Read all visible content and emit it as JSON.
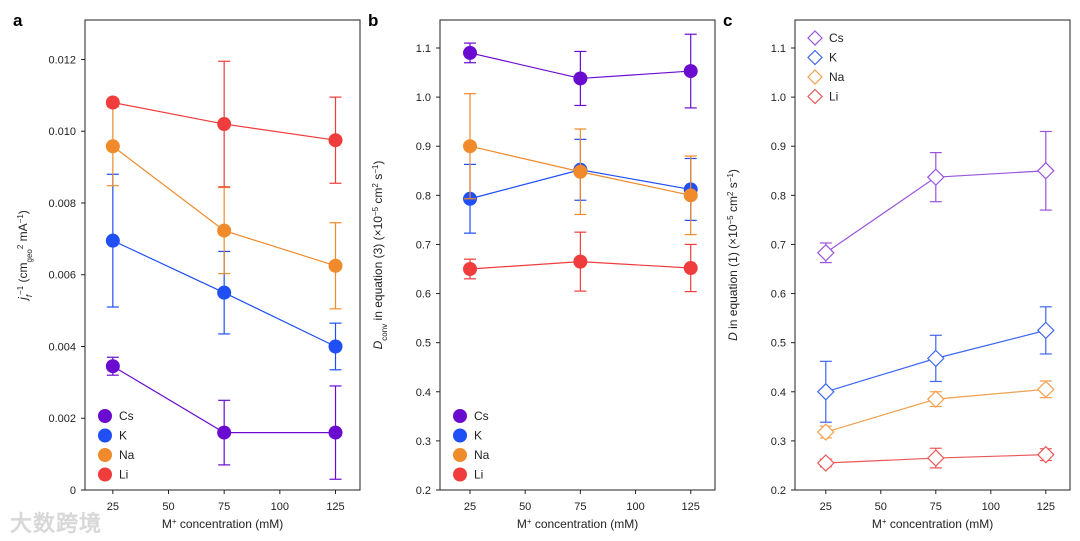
{
  "watermark": "大数跨境",
  "series_colors": {
    "Cs": "#6a0bd0",
    "K": "#1f4ff5",
    "Na": "#f08a2a",
    "Li": "#f03c3c"
  },
  "chart_data": [
    {
      "panel": "a",
      "type": "line",
      "markers": "filled-circle",
      "x": [
        25,
        75,
        125
      ],
      "xticks": [
        25,
        50,
        75,
        100,
        125
      ],
      "xlim": [
        12.5,
        136
      ],
      "yticks": [
        0,
        0.002,
        0.004,
        0.006,
        0.008,
        0.01,
        0.012
      ],
      "ytick_labels": [
        "0",
        "0.002",
        "0.004",
        "0.006",
        "0.008",
        "0.010",
        "0.012"
      ],
      "ylim": [
        0,
        0.0131
      ],
      "xlabel": [
        {
          "t": "M"
        },
        {
          "t": "+",
          "s": "sup"
        },
        {
          "t": " concentration (mM)"
        }
      ],
      "ylabel": [
        {
          "t": "j",
          "i": 1
        },
        {
          "t": "f",
          "s": "sub",
          "i": 1
        },
        {
          "t": "−1",
          "s": "sup"
        },
        {
          "t": " (cm"
        },
        {
          "t": "geo",
          "s": "sub"
        },
        {
          "t": "2",
          "s": "sup"
        },
        {
          "t": " mA"
        },
        {
          "t": "−1",
          "s": "sup"
        },
        {
          "t": ")"
        }
      ],
      "legend": "bottom-left",
      "series": [
        {
          "name": "Cs",
          "values": [
            0.00345,
            0.0016,
            0.0016
          ],
          "errors": [
            0.00025,
            0.0009,
            0.0013
          ]
        },
        {
          "name": "K",
          "values": [
            0.00695,
            0.0055,
            0.004
          ],
          "errors": [
            0.00185,
            0.00115,
            0.00065
          ]
        },
        {
          "name": "Na",
          "values": [
            0.00958,
            0.00723,
            0.00625
          ],
          "errors": [
            0.0011,
            0.0012,
            0.0012
          ]
        },
        {
          "name": "Li",
          "values": [
            0.0108,
            0.0102,
            0.00975
          ],
          "errors": [
            0.0001,
            0.00175,
            0.0012
          ]
        }
      ]
    },
    {
      "panel": "b",
      "type": "line",
      "markers": "filled-circle",
      "x": [
        25,
        75,
        125
      ],
      "xticks": [
        25,
        50,
        75,
        100,
        125
      ],
      "xlim": [
        11.4,
        136
      ],
      "yticks": [
        0.2,
        0.3,
        0.4,
        0.5,
        0.6,
        0.7,
        0.8,
        0.9,
        1.0,
        1.1
      ],
      "ytick_labels": [
        "0.2",
        "0.3",
        "0.4",
        "0.5",
        "0.6",
        "0.7",
        "0.8",
        "0.9",
        "1.0",
        "1.1"
      ],
      "ylim": [
        0.2,
        1.157
      ],
      "xlabel": [
        {
          "t": "M"
        },
        {
          "t": "+",
          "s": "sup"
        },
        {
          "t": " concentration (mM)"
        }
      ],
      "ylabel": [
        {
          "t": "D",
          "i": 1
        },
        {
          "t": "conv",
          "s": "sub"
        },
        {
          "t": " in equation (3) (×10"
        },
        {
          "t": "−5",
          "s": "sup"
        },
        {
          "t": " cm"
        },
        {
          "t": "2",
          "s": "sup"
        },
        {
          "t": " s"
        },
        {
          "t": "−1",
          "s": "sup"
        },
        {
          "t": ")"
        }
      ],
      "legend": "bottom-left",
      "series": [
        {
          "name": "Cs",
          "values": [
            1.09,
            1.038,
            1.053
          ],
          "errors": [
            0.02,
            0.055,
            0.075
          ]
        },
        {
          "name": "K",
          "values": [
            0.793,
            0.852,
            0.812
          ],
          "errors": [
            0.07,
            0.062,
            0.063
          ]
        },
        {
          "name": "Na",
          "values": [
            0.9,
            0.848,
            0.8
          ],
          "errors": [
            0.107,
            0.087,
            0.08
          ]
        },
        {
          "name": "Li",
          "values": [
            0.65,
            0.665,
            0.652
          ],
          "errors": [
            0.02,
            0.06,
            0.048
          ]
        }
      ]
    },
    {
      "panel": "c",
      "type": "line",
      "markers": "open-diamond",
      "x": [
        25,
        75,
        125
      ],
      "xticks": [
        25,
        50,
        75,
        100,
        125
      ],
      "xlim": [
        11,
        136
      ],
      "yticks": [
        0.2,
        0.3,
        0.4,
        0.5,
        0.6,
        0.7,
        0.8,
        0.9,
        1.0,
        1.1
      ],
      "ytick_labels": [
        "0.2",
        "0.3",
        "0.4",
        "0.5",
        "0.6",
        "0.7",
        "0.8",
        "0.9",
        "1.0",
        "1.1"
      ],
      "ylim": [
        0.2,
        1.157
      ],
      "xlabel": [
        {
          "t": "M"
        },
        {
          "t": "+",
          "s": "sup"
        },
        {
          "t": " concentration (mM)"
        }
      ],
      "ylabel": [
        {
          "t": "D",
          "i": 1
        },
        {
          "t": " in equation (1) (×10"
        },
        {
          "t": "−5",
          "s": "sup"
        },
        {
          "t": " cm"
        },
        {
          "t": "2",
          "s": "sup"
        },
        {
          "t": " s"
        },
        {
          "t": "−1",
          "s": "sup"
        },
        {
          "t": ")"
        }
      ],
      "legend": "top-left",
      "series": [
        {
          "name": "Cs",
          "values": [
            0.683,
            0.837,
            0.85
          ],
          "errors": [
            0.02,
            0.05,
            0.08
          ]
        },
        {
          "name": "K",
          "values": [
            0.4,
            0.468,
            0.525
          ],
          "errors": [
            0.062,
            0.047,
            0.048
          ]
        },
        {
          "name": "Na",
          "values": [
            0.318,
            0.385,
            0.405
          ],
          "errors": [
            0.012,
            0.015,
            0.017
          ]
        },
        {
          "name": "Li",
          "values": [
            0.255,
            0.265,
            0.272
          ],
          "errors": [
            0.008,
            0.02,
            0.012
          ]
        }
      ]
    }
  ]
}
